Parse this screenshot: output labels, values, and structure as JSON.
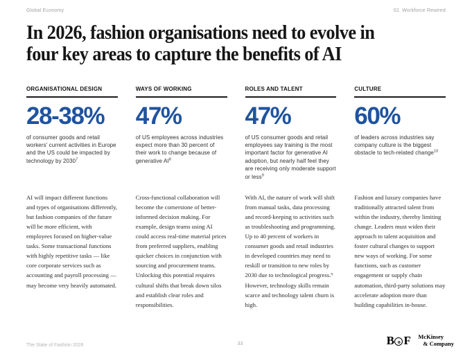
{
  "meta": {
    "section": "Global Economy",
    "chapter": "02. Workforce Rewired"
  },
  "title": {
    "line1": "In 2026, fashion organisations need to evolve in",
    "line2": "four key areas to capture the benefits of AI"
  },
  "colors": {
    "accent_blue": "#1f539f",
    "rule_black": "#1a1a1a"
  },
  "columns": [
    {
      "label": "ORGANISATIONAL DESIGN",
      "stat": "28-38%",
      "note": "of consumer goods and retail workers' current activities in Europe and the US could be impacted by technology by 2030",
      "ref": "7",
      "paragraph": "AI will impact different functions and types of organisations differently, but fashion companies of the future will be more efficient, with employees focused on higher-value tasks. Some transactional functions with highly repetitive tasks — like core corporate services such as accounting and payroll processing — may become very heavily automated."
    },
    {
      "label": "WAYS OF WORKING",
      "stat": "47%",
      "note": "of US employees across industries expect more than 30 percent of their work to change because of generative AI",
      "ref": "8",
      "paragraph": "Cross-functional collaboration will become the cornerstone of better-informed decision making. For example, design teams using AI could access real-time material prices from preferred suppliers, enabling quicker choices in conjunction with sourcing and procurement teams. Unlocking this potential requires cultural shifts that break down silos and establish clear roles and responsibilities."
    },
    {
      "label": "ROLES AND TALENT",
      "stat": "47%",
      "note": "of US consumer goods and retail employees say training is the most important factor for generative AI adoption, but nearly half feel they are receiving only moderate support or less",
      "ref": "9",
      "paragraph": "With AI, the nature of work will shift from manual tasks, data processing and record-keeping to activities such as troubleshooting and programming. Up to 40 percent of workers in consumer goods and retail industries in developed countries may need to reskill or transition to new roles by 2030 due to technological progress.⁹ However, technology skills remain scarce and technology talent churn is high."
    },
    {
      "label": "CULTURE",
      "stat": "60%",
      "note": "of leaders across industries say company culture is the biggest obstacle to tech-related change",
      "ref": "10",
      "paragraph": "Fashion and luxury companies have traditionally attracted talent from within the industry, thereby limiting change. Leaders must widen their approach to talent acquisition and foster cultural changes to support new ways of working. For some functions, such as customer engagement or supply chain automation, third-party solutions may accelerate adoption more than building capabilities in-house."
    }
  ],
  "footer": {
    "report": "The State of Fashion 2026",
    "page": "33",
    "bof": {
      "b": "B",
      "o": "o",
      "f": "F"
    },
    "mckinsey_line1": "McKinsey",
    "mckinsey_line2": "& Company"
  }
}
